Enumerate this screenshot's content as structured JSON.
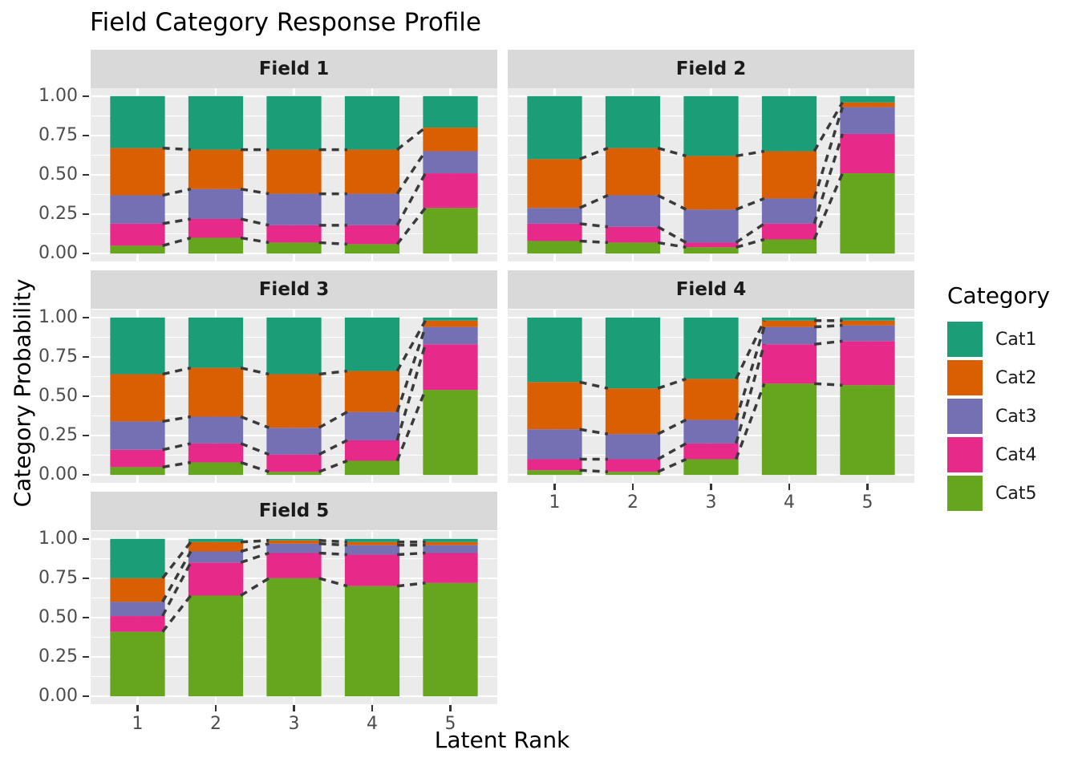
{
  "title": "Field Category Response Profile",
  "x_axis": {
    "title": "Latent Rank",
    "tick_labels": [
      "1",
      "2",
      "3",
      "4",
      "5"
    ]
  },
  "y_axis": {
    "title": "Category Probability",
    "tick_labels": [
      "0.00",
      "0.25",
      "0.50",
      "0.75",
      "1.00"
    ],
    "tick_values": [
      0,
      0.25,
      0.5,
      0.75,
      1.0
    ]
  },
  "legend": {
    "title": "Category",
    "items": [
      {
        "label": "Cat1",
        "color": "#1b9e77"
      },
      {
        "label": "Cat2",
        "color": "#d95f02"
      },
      {
        "label": "Cat3",
        "color": "#7570b3"
      },
      {
        "label": "Cat4",
        "color": "#e7298a"
      },
      {
        "label": "Cat5",
        "color": "#66a61e"
      }
    ]
  },
  "chart_data": {
    "type": "bar",
    "variant": "stacked-proportional-faceted",
    "title": "Field Category Response Profile",
    "xlabel": "Latent Rank",
    "ylabel": "Category Probability",
    "ylim": [
      0,
      1
    ],
    "y_ticks": [
      0,
      0.25,
      0.5,
      0.75,
      1.0
    ],
    "x": [
      1,
      2,
      3,
      4,
      5
    ],
    "grid": "white major and minor gridlines on gray panel",
    "legend_position": "right",
    "legend_title": "Category",
    "stack_order_bottom_to_top": [
      "Cat5",
      "Cat4",
      "Cat3",
      "Cat2",
      "Cat1"
    ],
    "colors": {
      "Cat1": "#1b9e77",
      "Cat2": "#d95f02",
      "Cat3": "#7570b3",
      "Cat4": "#e7298a",
      "Cat5": "#66a61e"
    },
    "connectors": "dashed dark-gray segments join stack boundaries of adjacent bars",
    "facets": [
      {
        "name": "Field 1",
        "series": {
          "Cat1": [
            0.33,
            0.34,
            0.34,
            0.34,
            0.2
          ],
          "Cat2": [
            0.3,
            0.25,
            0.28,
            0.28,
            0.15
          ],
          "Cat3": [
            0.18,
            0.19,
            0.2,
            0.2,
            0.14
          ],
          "Cat4": [
            0.14,
            0.12,
            0.11,
            0.12,
            0.22
          ],
          "Cat5": [
            0.05,
            0.1,
            0.07,
            0.06,
            0.29
          ]
        }
      },
      {
        "name": "Field 2",
        "series": {
          "Cat1": [
            0.4,
            0.33,
            0.38,
            0.35,
            0.04
          ],
          "Cat2": [
            0.31,
            0.3,
            0.34,
            0.3,
            0.03
          ],
          "Cat3": [
            0.1,
            0.2,
            0.21,
            0.16,
            0.17
          ],
          "Cat4": [
            0.11,
            0.1,
            0.03,
            0.1,
            0.25
          ],
          "Cat5": [
            0.08,
            0.07,
            0.04,
            0.09,
            0.51
          ]
        }
      },
      {
        "name": "Field 3",
        "series": {
          "Cat1": [
            0.36,
            0.32,
            0.36,
            0.34,
            0.02
          ],
          "Cat2": [
            0.3,
            0.31,
            0.34,
            0.26,
            0.04
          ],
          "Cat3": [
            0.18,
            0.17,
            0.17,
            0.18,
            0.11
          ],
          "Cat4": [
            0.11,
            0.12,
            0.11,
            0.13,
            0.29
          ],
          "Cat5": [
            0.05,
            0.08,
            0.02,
            0.09,
            0.54
          ]
        }
      },
      {
        "name": "Field 4",
        "series": {
          "Cat1": [
            0.41,
            0.45,
            0.39,
            0.02,
            0.02
          ],
          "Cat2": [
            0.3,
            0.29,
            0.26,
            0.04,
            0.03
          ],
          "Cat3": [
            0.19,
            0.16,
            0.15,
            0.11,
            0.1
          ],
          "Cat4": [
            0.07,
            0.08,
            0.1,
            0.25,
            0.28
          ],
          "Cat5": [
            0.03,
            0.02,
            0.1,
            0.58,
            0.57
          ]
        }
      },
      {
        "name": "Field 5",
        "series": {
          "Cat1": [
            0.25,
            0.02,
            0.01,
            0.02,
            0.02
          ],
          "Cat2": [
            0.15,
            0.06,
            0.02,
            0.02,
            0.02
          ],
          "Cat3": [
            0.09,
            0.07,
            0.06,
            0.06,
            0.05
          ],
          "Cat4": [
            0.1,
            0.21,
            0.16,
            0.2,
            0.19
          ],
          "Cat5": [
            0.41,
            0.64,
            0.75,
            0.7,
            0.72
          ]
        }
      }
    ]
  }
}
